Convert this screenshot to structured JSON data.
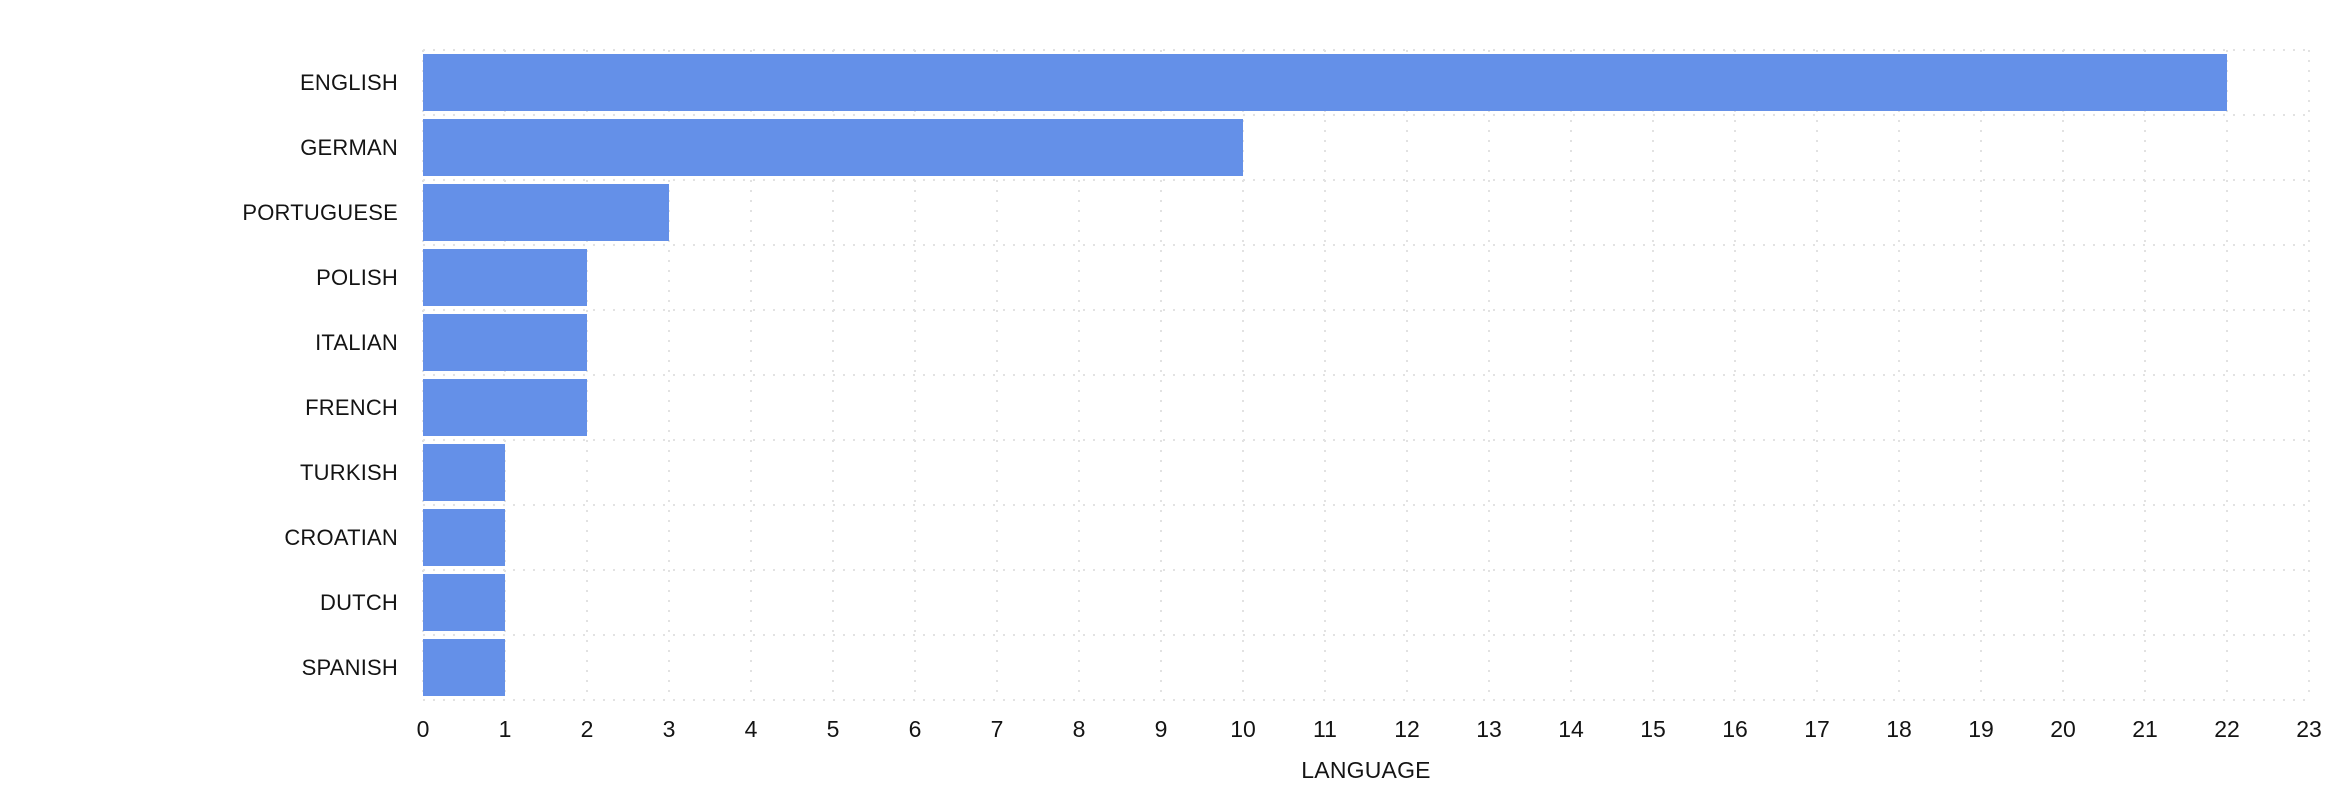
{
  "chart_data": {
    "type": "bar",
    "orientation": "horizontal",
    "categories": [
      "ENGLISH",
      "GERMAN",
      "PORTUGUESE",
      "POLISH",
      "ITALIAN",
      "FRENCH",
      "TURKISH",
      "CROATIAN",
      "DUTCH",
      "SPANISH"
    ],
    "values": [
      22,
      10,
      3,
      2,
      2,
      2,
      1,
      1,
      1,
      1
    ],
    "xlabel": "LANGUAGE",
    "ylabel": "",
    "xlim": [
      0,
      23
    ],
    "x_ticks": [
      "0",
      "1",
      "2",
      "3",
      "4",
      "5",
      "6",
      "7",
      "8",
      "9",
      "10",
      "11",
      "12",
      "13",
      "14",
      "15",
      "16",
      "17",
      "18",
      "19",
      "20",
      "21",
      "22",
      "23"
    ],
    "grid": "dotted",
    "legend": "none",
    "colors": {
      "bar": "#6490e8",
      "grid": "#e2e2e2",
      "text": "#141414",
      "background": "#ffffff"
    }
  }
}
